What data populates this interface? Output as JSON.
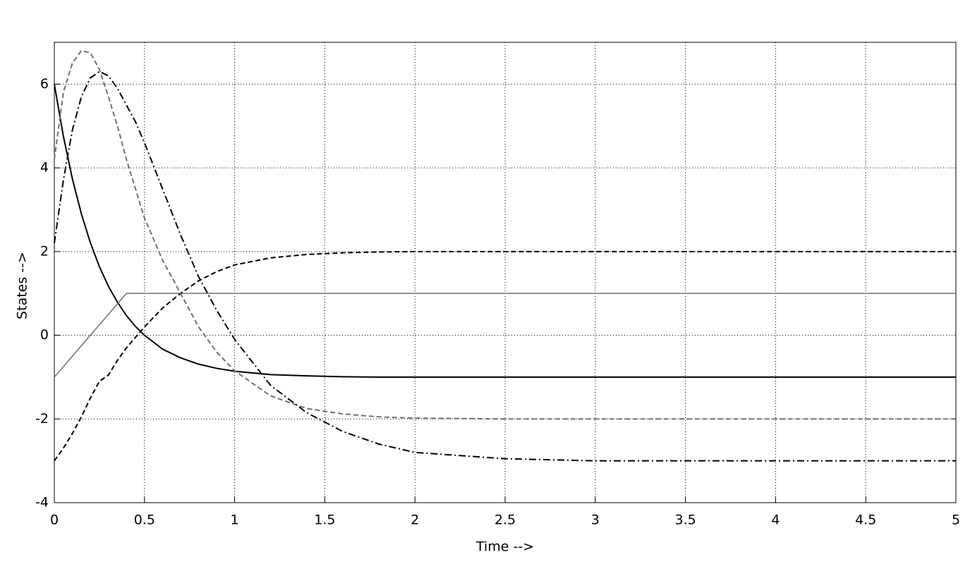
{
  "chart_data": {
    "type": "line",
    "xlabel": "Time -->",
    "ylabel": "States -->",
    "x": [
      0,
      0.05,
      0.1,
      0.15,
      0.2,
      0.25,
      0.3,
      0.35,
      0.4,
      0.45,
      0.5,
      0.6,
      0.7,
      0.8,
      0.9,
      1.0,
      1.2,
      1.4,
      1.6,
      1.8,
      2.0,
      2.5,
      3,
      3.5,
      4,
      4.5,
      5
    ],
    "series": [
      {
        "color": "#000000",
        "dash": "none",
        "width": 2,
        "values": [
          6,
          4.76,
          3.74,
          2.9,
          2.21,
          1.64,
          1.17,
          0.79,
          0.47,
          0.21,
          0,
          -0.33,
          -0.54,
          -0.69,
          -0.79,
          -0.86,
          -0.94,
          -0.97,
          -0.99,
          -1,
          -1,
          -1,
          -1,
          -1,
          -1,
          -1,
          -1
        ]
      },
      {
        "color": "#707070",
        "dash": "none",
        "width": 1.5,
        "values": [
          -1,
          -0.75,
          -0.5,
          -0.25,
          0,
          0.25,
          0.5,
          0.75,
          1,
          1,
          1,
          1,
          1,
          1,
          1,
          1,
          1,
          1,
          1,
          1,
          1,
          1,
          1,
          1,
          1,
          1,
          1
        ]
      },
      {
        "color": "#000000",
        "dash": "7,4",
        "width": 2,
        "values": [
          -3,
          -2.7,
          -2.35,
          -1.95,
          -1.5,
          -1.1,
          -0.95,
          -0.6,
          -0.3,
          -0.05,
          0.2,
          0.65,
          1.0,
          1.3,
          1.52,
          1.68,
          1.85,
          1.93,
          1.97,
          1.99,
          2,
          2,
          2,
          2,
          2,
          2,
          2
        ]
      },
      {
        "color": "#707070",
        "dash": "7,4",
        "width": 2,
        "values": [
          4.2,
          5.8,
          6.5,
          6.8,
          6.75,
          6.35,
          5.7,
          5.0,
          4.2,
          3.5,
          2.8,
          1.8,
          1.0,
          0.2,
          -0.4,
          -0.85,
          -1.45,
          -1.75,
          -1.88,
          -1.95,
          -1.98,
          -2,
          -2,
          -2,
          -2,
          -2,
          -2
        ]
      },
      {
        "color": "#000000",
        "dash": "10,4,2,4",
        "width": 2,
        "values": [
          2.2,
          3.7,
          4.9,
          5.7,
          6.15,
          6.3,
          6.2,
          5.9,
          5.5,
          5.1,
          4.6,
          3.5,
          2.4,
          1.4,
          0.6,
          -0.1,
          -1.2,
          -1.85,
          -2.3,
          -2.6,
          -2.8,
          -2.95,
          -3,
          -3,
          -3,
          -3,
          -3
        ]
      }
    ],
    "xlim": [
      0,
      5
    ],
    "xticks": [
      0,
      0.5,
      1,
      1.5,
      2,
      2.5,
      3,
      3.5,
      4,
      4.5,
      5
    ],
    "ylim": [
      -4,
      7
    ],
    "yticks": [
      -4,
      -2,
      0,
      2,
      4,
      6
    ],
    "grid": true
  }
}
